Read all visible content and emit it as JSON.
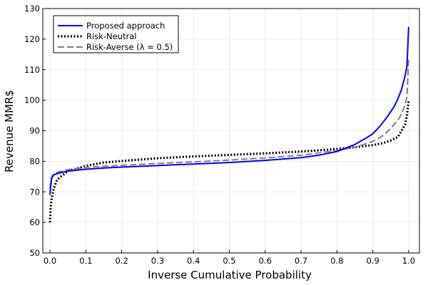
{
  "chart_data": {
    "type": "line",
    "title": "",
    "xlabel": "Inverse Cumulative Probability",
    "ylabel": "Revenue MMR$",
    "xlim": [
      -0.02,
      1.03
    ],
    "ylim": [
      50,
      130
    ],
    "xticks": [
      0.0,
      0.1,
      0.2,
      0.3,
      0.4,
      0.5,
      0.6,
      0.7,
      0.8,
      0.9,
      1.0
    ],
    "xtick_labels": [
      "0.0",
      "0.1",
      "0.2",
      "0.3",
      "0.4",
      "0.5",
      "0.6",
      "0.7",
      "0.8",
      "0.9",
      "1.0"
    ],
    "yticks": [
      50,
      60,
      70,
      80,
      90,
      100,
      110,
      120,
      130
    ],
    "ytick_labels": [
      "50",
      "60",
      "70",
      "80",
      "90",
      "100",
      "110",
      "120",
      "130"
    ],
    "grid": true,
    "legend_position": "top-left",
    "series": [
      {
        "name": "Proposed approach",
        "color": "#0000ff",
        "dash": "solid",
        "x": [
          0.0,
          0.002,
          0.005,
          0.01,
          0.02,
          0.05,
          0.1,
          0.15,
          0.2,
          0.3,
          0.4,
          0.5,
          0.6,
          0.7,
          0.75,
          0.8,
          0.85,
          0.88,
          0.9,
          0.92,
          0.94,
          0.96,
          0.97,
          0.98,
          0.99,
          0.995,
          1.0
        ],
        "y": [
          69,
          72,
          74.5,
          75.5,
          76,
          76.8,
          77.4,
          77.8,
          78.1,
          78.6,
          79.1,
          79.6,
          80.3,
          81.2,
          82.0,
          83.2,
          85.5,
          87.5,
          89.0,
          91.5,
          94.5,
          98.0,
          100.5,
          103.5,
          108.0,
          111.0,
          124.0
        ]
      },
      {
        "name": "Risk-Neutral",
        "color": "#000000",
        "dash": "dotted",
        "x": [
          0.0,
          0.002,
          0.005,
          0.01,
          0.02,
          0.05,
          0.1,
          0.15,
          0.2,
          0.3,
          0.4,
          0.5,
          0.6,
          0.7,
          0.8,
          0.85,
          0.9,
          0.93,
          0.95,
          0.97,
          0.98,
          0.99,
          0.995,
          1.0
        ],
        "y": [
          60,
          65,
          68,
          71,
          74,
          76.8,
          78.5,
          79.6,
          80.1,
          81.0,
          81.6,
          82.1,
          82.6,
          83.2,
          84.0,
          84.6,
          85.3,
          86.0,
          86.8,
          88.0,
          90.0,
          92.0,
          95.0,
          100.0
        ]
      },
      {
        "name": "Risk-Averse (λ = 0.5)",
        "color": "#808080",
        "dash": "dashed",
        "x": [
          0.0,
          0.002,
          0.005,
          0.01,
          0.02,
          0.05,
          0.1,
          0.15,
          0.2,
          0.3,
          0.4,
          0.5,
          0.6,
          0.7,
          0.8,
          0.85,
          0.9,
          0.93,
          0.95,
          0.97,
          0.98,
          0.99,
          0.995,
          1.0
        ],
        "y": [
          71,
          73.5,
          75,
          75.8,
          76.4,
          77.3,
          78.0,
          78.4,
          78.7,
          79.3,
          79.8,
          80.4,
          81.1,
          82.0,
          83.5,
          84.6,
          86.5,
          88.5,
          90.8,
          93.5,
          95.5,
          98.5,
          101.0,
          114.0
        ]
      }
    ]
  }
}
